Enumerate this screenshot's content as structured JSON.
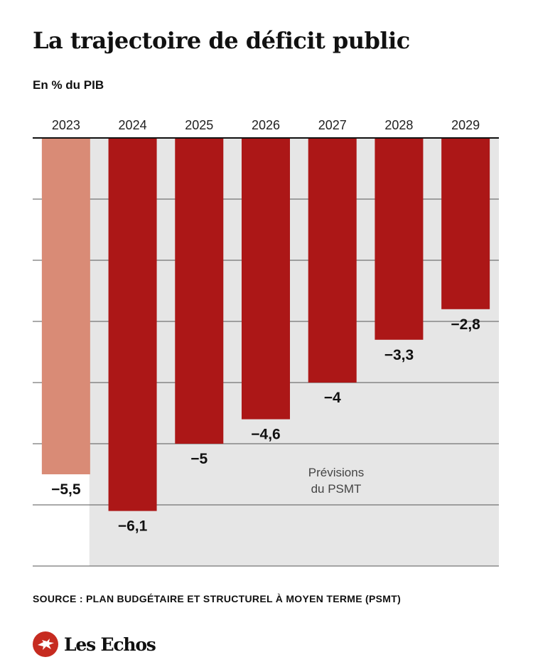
{
  "title": "La trajectoire de déficit public",
  "subtitle": "En % du PIB",
  "source": "SOURCE : PLAN BUDGÉTAIRE ET STRUCTUREL À MOYEN TERME (PSMT)",
  "brand": "Les Echos",
  "chart_data": {
    "type": "bar",
    "title": "La trajectoire de déficit public",
    "ylabel": "En % du PIB",
    "categories": [
      "2023",
      "2024",
      "2025",
      "2026",
      "2027",
      "2028",
      "2029"
    ],
    "values": [
      -5.5,
      -6.1,
      -5,
      -4.6,
      -4,
      -3.3,
      -2.8
    ],
    "value_labels": [
      "−5,5",
      "−6,1",
      "−5",
      "−4,6",
      "−4",
      "−3,3",
      "−2,8"
    ],
    "ylim": [
      -7,
      0
    ],
    "grid": true,
    "forecast_start_index": 1,
    "forecast_label": [
      "Prévisions",
      "du PSMT"
    ],
    "colors": {
      "actual": "#d98b76",
      "forecast": "#ac1717",
      "forecast_background": "#e6e6e6",
      "gridline": "#555555",
      "brand": "#c62b20"
    }
  }
}
